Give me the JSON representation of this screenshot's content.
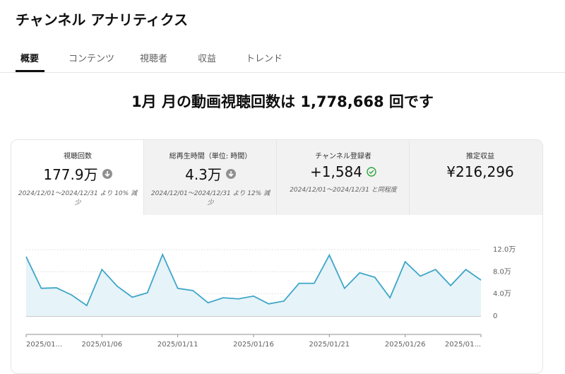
{
  "header": {
    "title": "チャンネル アナリティクス"
  },
  "tabs": [
    "概要",
    "コンテンツ",
    "視聴者",
    "収益",
    "トレンド"
  ],
  "headline": "1月 月の動画視聴回数は 1,778,668 回です",
  "metrics": [
    {
      "label": "視聴回数",
      "value": "177.9万",
      "comparison": "2024/12/01〜2024/12/31 より 10% 減少"
    },
    {
      "label": "総再生時間（単位: 時間）",
      "value": "4.3万",
      "comparison": "2024/12/01〜2024/12/31 より 12% 減少"
    },
    {
      "label": "チャンネル登録者",
      "value": "+1,584",
      "comparison": "2024/12/01〜2024/12/31 と同程度"
    },
    {
      "label": "推定収益",
      "value": "¥216,296"
    }
  ],
  "chart_data": {
    "type": "line",
    "categories": [
      "2025/01...",
      null,
      null,
      null,
      null,
      "2025/01/06",
      null,
      null,
      null,
      null,
      "2025/01/11",
      null,
      null,
      null,
      null,
      "2025/01/16",
      null,
      null,
      null,
      null,
      "2025/01/21",
      null,
      null,
      null,
      null,
      "2025/01/26",
      null,
      null,
      null,
      null,
      "2025/01..."
    ],
    "series": [
      {
        "name": "視聴回数",
        "color": "#3ea6c8",
        "values": [
          107000,
          50000,
          51000,
          38000,
          19000,
          84000,
          54000,
          34000,
          42000,
          111000,
          50000,
          46000,
          24000,
          33000,
          31000,
          36000,
          22000,
          27000,
          59000,
          59000,
          110000,
          50000,
          78000,
          70000,
          33000,
          98000,
          72000,
          84000,
          55000,
          84000,
          65000
        ]
      }
    ],
    "ylim": [
      0,
      120000
    ],
    "yticks": [
      0,
      {
        "value": 40000,
        "label": "4.0万"
      },
      {
        "value": 80000,
        "label": "8.0万"
      },
      {
        "value": 120000,
        "label": "12.0万"
      }
    ],
    "grid": true
  }
}
